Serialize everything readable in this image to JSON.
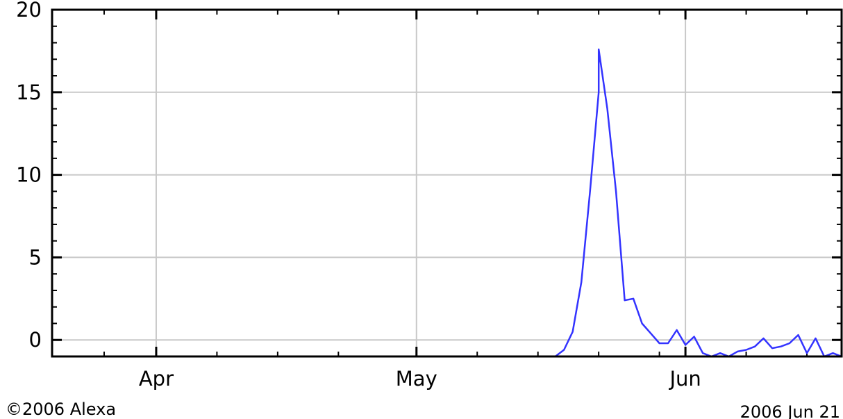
{
  "chart_data": {
    "type": "line",
    "title": "",
    "xlabel": "",
    "ylabel": "",
    "ylim": [
      -1,
      20
    ],
    "xlim": [
      "2006-03-20",
      "2006-06-19"
    ],
    "grid": true,
    "x_ticks": [
      {
        "date": "2006-04-01",
        "label": "Apr"
      },
      {
        "date": "2006-05-01",
        "label": "May"
      },
      {
        "date": "2006-06-01",
        "label": "Jun"
      }
    ],
    "x_minor_ticks": [
      "2006-03-26",
      "2006-04-08",
      "2006-04-15",
      "2006-04-22",
      "2006-05-08",
      "2006-05-15",
      "2006-05-22",
      "2006-05-29",
      "2006-06-08",
      "2006-06-15"
    ],
    "y_ticks": [
      0,
      5,
      10,
      15,
      20
    ],
    "y_minor_ticks": [
      1,
      2,
      3,
      4,
      6,
      7,
      8,
      9,
      11,
      12,
      13,
      14,
      16,
      17,
      18,
      19
    ],
    "series": [
      {
        "color": "#3333ff",
        "points": [
          [
            "2006-03-20",
            -1
          ],
          [
            "2006-05-17",
            -1
          ],
          [
            "2006-05-18",
            -0.6
          ],
          [
            "2006-05-19",
            0.5
          ],
          [
            "2006-05-20",
            3.5
          ],
          [
            "2006-05-21",
            9.0
          ],
          [
            "2006-05-22",
            15.0
          ],
          [
            "2006-05-22",
            17.6
          ],
          [
            "2006-05-23",
            14.0
          ],
          [
            "2006-05-24",
            9.0
          ],
          [
            "2006-05-25",
            2.4
          ],
          [
            "2006-05-26",
            2.5
          ],
          [
            "2006-05-27",
            1.0
          ],
          [
            "2006-05-28",
            0.4
          ],
          [
            "2006-05-29",
            -0.2
          ],
          [
            "2006-05-30",
            -0.2
          ],
          [
            "2006-05-31",
            0.6
          ],
          [
            "2006-06-01",
            -0.3
          ],
          [
            "2006-06-02",
            0.2
          ],
          [
            "2006-06-03",
            -0.8
          ],
          [
            "2006-06-04",
            -1
          ],
          [
            "2006-06-05",
            -0.8
          ],
          [
            "2006-06-06",
            -1
          ],
          [
            "2006-06-07",
            -0.7
          ],
          [
            "2006-06-08",
            -0.6
          ],
          [
            "2006-06-09",
            -0.4
          ],
          [
            "2006-06-10",
            0.1
          ],
          [
            "2006-06-11",
            -0.5
          ],
          [
            "2006-06-12",
            -0.4
          ],
          [
            "2006-06-13",
            -0.2
          ],
          [
            "2006-06-14",
            0.3
          ],
          [
            "2006-06-15",
            -0.8
          ],
          [
            "2006-06-16",
            0.1
          ],
          [
            "2006-06-17",
            -1
          ],
          [
            "2006-06-18",
            -0.8
          ],
          [
            "2006-06-19",
            -1
          ]
        ]
      }
    ]
  },
  "footer": {
    "copyright": "©2006 Alexa",
    "date_stamp": "2006 Jun 21"
  }
}
